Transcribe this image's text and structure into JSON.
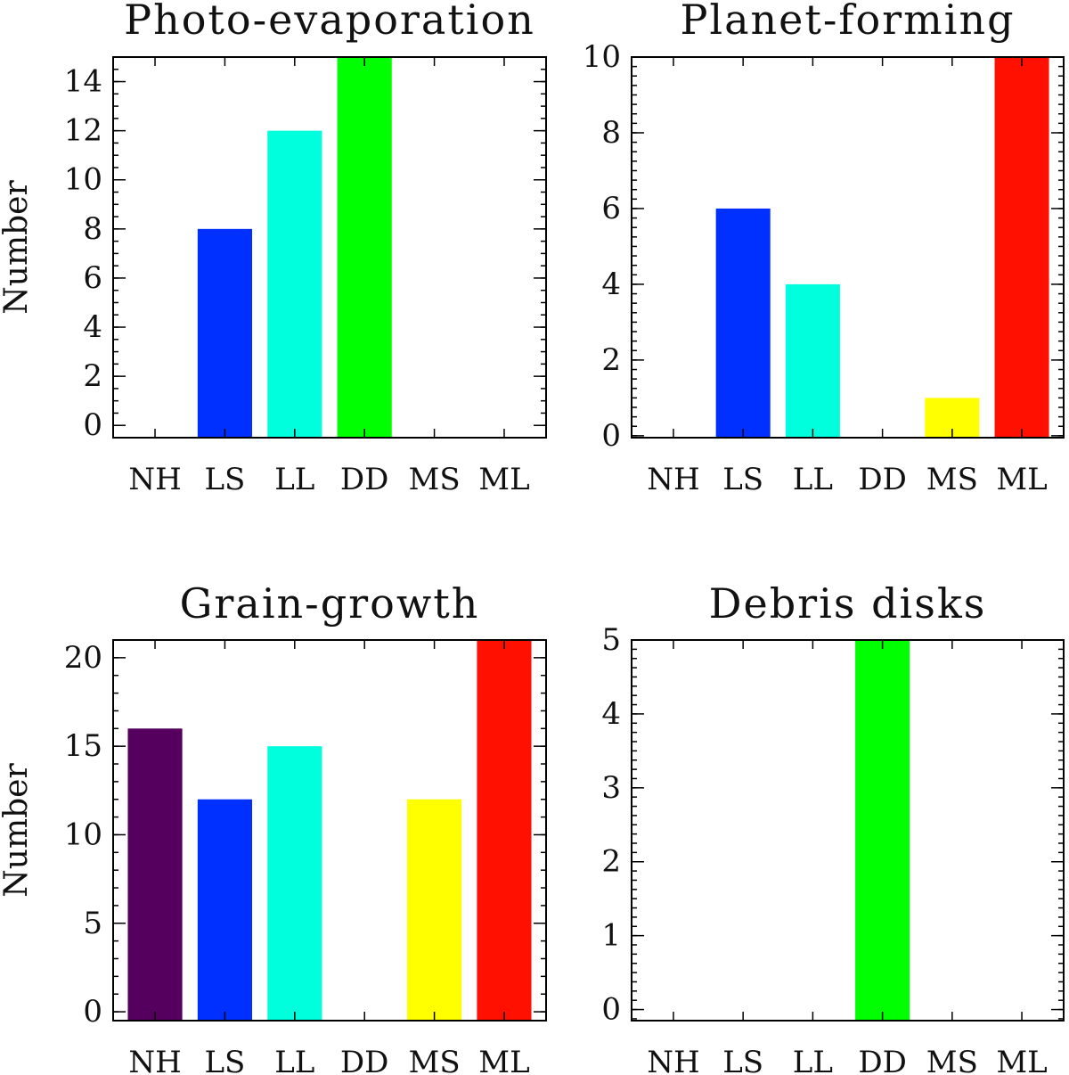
{
  "chart_data": [
    {
      "type": "bar",
      "title": "Photo-evaporation",
      "categories": [
        "NH",
        "LS",
        "LL",
        "DD",
        "MS",
        "ML"
      ],
      "values": [
        0,
        8,
        12,
        15,
        0,
        0
      ],
      "colors": [
        "#55005f",
        "#0030ff",
        "#00ffdd",
        "#00ff00",
        "#ffff00",
        "#ff1000"
      ],
      "ylabel": "Number",
      "xlabel": "",
      "ylim": [
        -0.5,
        15
      ],
      "yticks": [
        0,
        2,
        4,
        6,
        8,
        10,
        12,
        14
      ],
      "yminor": 0.5
    },
    {
      "type": "bar",
      "title": "Planet-forming",
      "categories": [
        "NH",
        "LS",
        "LL",
        "DD",
        "MS",
        "ML"
      ],
      "values": [
        0,
        6,
        4,
        0,
        1,
        10
      ],
      "colors": [
        "#55005f",
        "#0030ff",
        "#00ffdd",
        "#00ff00",
        "#ffff00",
        "#ff1000"
      ],
      "ylabel": "",
      "xlabel": "",
      "ylim": [
        -0.05,
        10
      ],
      "yticks": [
        0,
        2,
        4,
        6,
        8,
        10
      ],
      "yminor": 0.25
    },
    {
      "type": "bar",
      "title": "Grain-growth",
      "categories": [
        "NH",
        "LS",
        "LL",
        "DD",
        "MS",
        "ML"
      ],
      "values": [
        16,
        12,
        15,
        0,
        12,
        21
      ],
      "colors": [
        "#55005f",
        "#0030ff",
        "#00ffdd",
        "#00ff00",
        "#ffff00",
        "#ff1000"
      ],
      "ylabel": "Number",
      "xlabel": "",
      "ylim": [
        -0.5,
        21
      ],
      "yticks": [
        0,
        5,
        10,
        15,
        20
      ],
      "yminor": 1
    },
    {
      "type": "bar",
      "title": "Debris disks",
      "categories": [
        "NH",
        "LS",
        "LL",
        "DD",
        "MS",
        "ML"
      ],
      "values": [
        0,
        0,
        0,
        5,
        0,
        0
      ],
      "colors": [
        "#55005f",
        "#0030ff",
        "#00ffdd",
        "#00ff00",
        "#ffff00",
        "#ff1000"
      ],
      "ylabel": "",
      "xlabel": "",
      "ylim": [
        -0.15,
        5
      ],
      "yticks": [
        0,
        1,
        2,
        3,
        4,
        5
      ],
      "yminor": 0.125
    }
  ]
}
